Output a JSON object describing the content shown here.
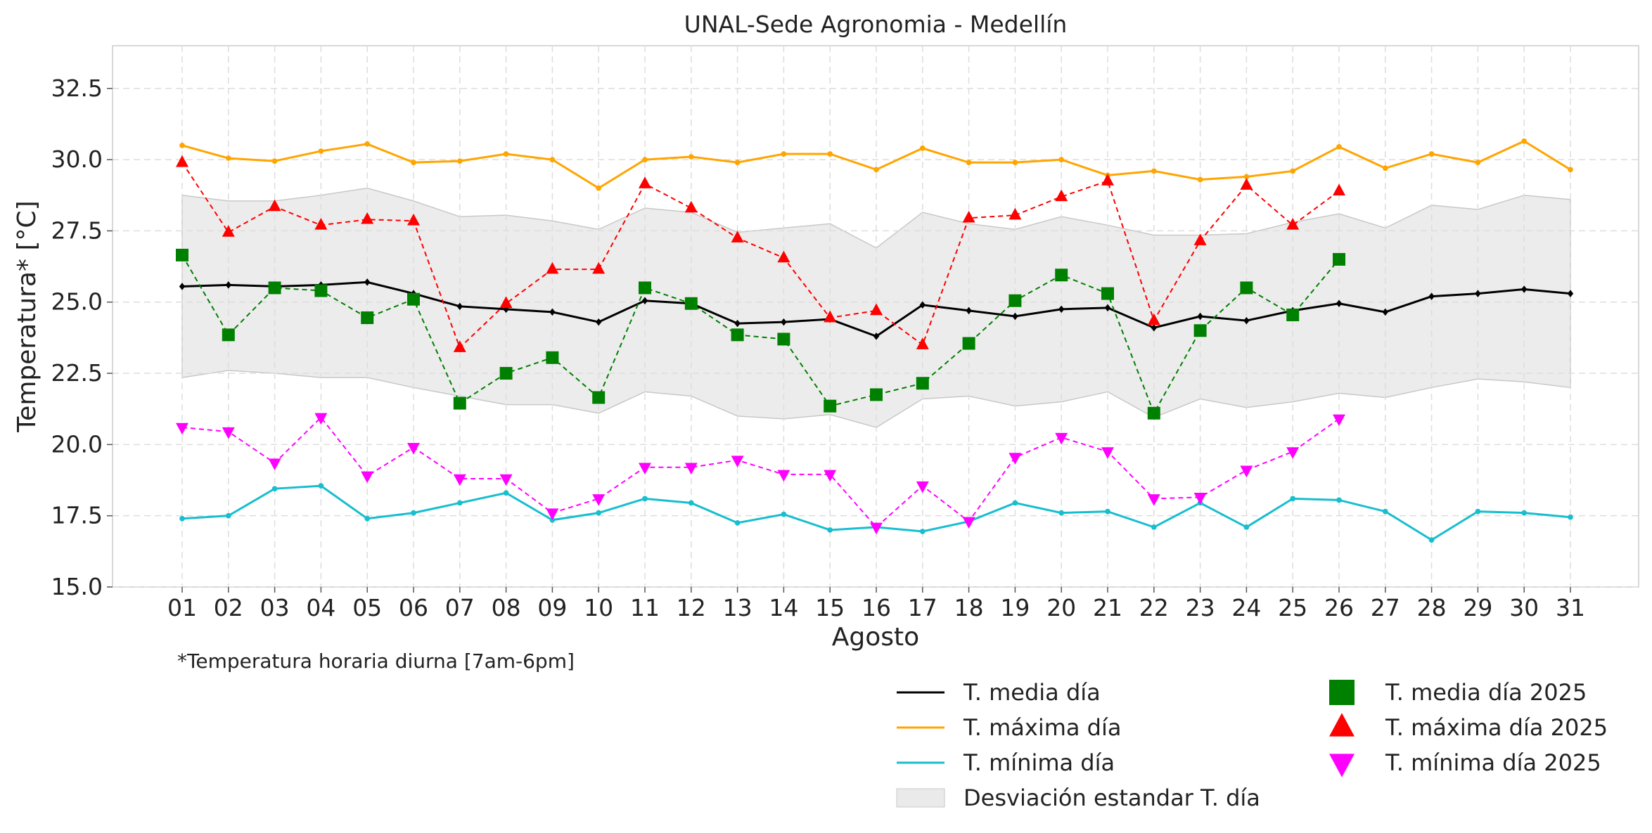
{
  "chart_data": {
    "type": "line",
    "title": "UNAL-Sede Agronomia - Medellín",
    "xlabel": "Agosto",
    "ylabel": "Temperatura* [°C]",
    "footnote": "*Temperatura horaria diurna [7am-6pm]",
    "ylim": [
      15.0,
      34.0
    ],
    "yticks": [
      "15.0",
      "17.5",
      "20.0",
      "22.5",
      "25.0",
      "27.5",
      "30.0",
      "32.5"
    ],
    "grid": true,
    "legend_position": "bottom-right, below plot",
    "categories": [
      "01",
      "02",
      "03",
      "04",
      "05",
      "06",
      "07",
      "08",
      "09",
      "10",
      "11",
      "12",
      "13",
      "14",
      "15",
      "16",
      "17",
      "18",
      "19",
      "20",
      "21",
      "22",
      "23",
      "24",
      "25",
      "26",
      "27",
      "28",
      "29",
      "30",
      "31"
    ],
    "band": {
      "name": "Desviación estandar T. día",
      "color": "#d9d9d9",
      "upper": [
        28.75,
        28.55,
        28.55,
        28.75,
        29.0,
        28.55,
        28.0,
        28.05,
        27.85,
        27.55,
        28.3,
        28.15,
        27.45,
        27.6,
        27.75,
        26.9,
        28.15,
        27.75,
        27.55,
        28.0,
        27.7,
        27.35,
        27.35,
        27.4,
        27.8,
        28.1,
        27.6,
        28.4,
        28.25,
        28.75,
        28.6
      ],
      "lower": [
        22.35,
        22.6,
        22.5,
        22.35,
        22.35,
        22.0,
        21.7,
        21.4,
        21.4,
        21.1,
        21.85,
        21.7,
        21.0,
        20.9,
        21.05,
        20.6,
        21.6,
        21.7,
        21.35,
        21.5,
        21.85,
        20.95,
        21.6,
        21.3,
        21.5,
        21.8,
        21.65,
        22.0,
        22.3,
        22.2,
        22.0
      ]
    },
    "series": [
      {
        "name": "T. media día",
        "color": "#000000",
        "style": "solid",
        "marker": "diamond",
        "values": [
          25.55,
          25.6,
          25.55,
          25.6,
          25.7,
          25.3,
          24.85,
          24.75,
          24.65,
          24.3,
          25.05,
          24.95,
          24.25,
          24.3,
          24.4,
          23.8,
          24.9,
          24.7,
          24.5,
          24.75,
          24.8,
          24.1,
          24.5,
          24.35,
          24.7,
          24.95,
          24.65,
          25.2,
          25.3,
          25.45,
          25.3
        ]
      },
      {
        "name": "T. máxima día",
        "color": "#ffa500",
        "style": "solid",
        "marker": "circle",
        "values": [
          30.5,
          30.05,
          29.95,
          30.3,
          30.55,
          29.9,
          29.95,
          30.2,
          30.0,
          29.0,
          30.0,
          30.1,
          29.9,
          30.2,
          30.2,
          29.65,
          30.4,
          29.9,
          29.9,
          30.0,
          29.45,
          29.6,
          29.3,
          29.4,
          29.6,
          30.45,
          29.7,
          30.2,
          29.9,
          30.65,
          29.65
        ]
      },
      {
        "name": "T. mínima día",
        "color": "#17becf",
        "style": "solid",
        "marker": "circle",
        "values": [
          17.4,
          17.5,
          18.45,
          18.55,
          17.4,
          17.6,
          17.95,
          18.3,
          17.35,
          17.6,
          18.1,
          17.95,
          17.25,
          17.55,
          17.0,
          17.1,
          16.95,
          17.3,
          17.95,
          17.6,
          17.65,
          17.1,
          17.95,
          17.1,
          18.1,
          18.05,
          17.65,
          16.65,
          17.65,
          17.6,
          17.45
        ]
      },
      {
        "name": "T. media día 2025",
        "color": "#008000",
        "style": "dashed",
        "marker": "square",
        "values": [
          26.65,
          23.85,
          25.5,
          25.4,
          24.45,
          25.1,
          21.45,
          22.5,
          23.05,
          21.65,
          25.5,
          24.95,
          23.85,
          23.7,
          21.35,
          21.75,
          22.15,
          23.55,
          25.05,
          25.95,
          25.3,
          21.1,
          24.0,
          25.5,
          24.55,
          26.5,
          null,
          null,
          null,
          null,
          null
        ]
      },
      {
        "name": "T. máxima día 2025",
        "color": "#ff0000",
        "style": "dashed",
        "marker": "triangle-up",
        "values": [
          29.9,
          27.45,
          28.35,
          27.7,
          27.9,
          27.85,
          23.4,
          24.95,
          26.15,
          26.15,
          29.15,
          28.3,
          27.25,
          26.55,
          24.45,
          24.7,
          23.5,
          27.95,
          28.05,
          28.7,
          29.25,
          24.35,
          27.15,
          29.1,
          27.7,
          28.9,
          null,
          null,
          null,
          null,
          null
        ]
      },
      {
        "name": "T. mínima día 2025",
        "color": "#ff00ff",
        "style": "dashed",
        "marker": "triangle-down",
        "values": [
          20.6,
          20.45,
          19.35,
          20.95,
          18.9,
          19.9,
          18.8,
          18.8,
          17.6,
          18.1,
          19.2,
          19.2,
          19.45,
          18.95,
          18.95,
          17.1,
          18.55,
          17.3,
          19.55,
          20.25,
          19.75,
          18.1,
          18.15,
          19.1,
          19.75,
          20.9,
          null,
          null,
          null,
          null,
          null
        ]
      }
    ]
  }
}
